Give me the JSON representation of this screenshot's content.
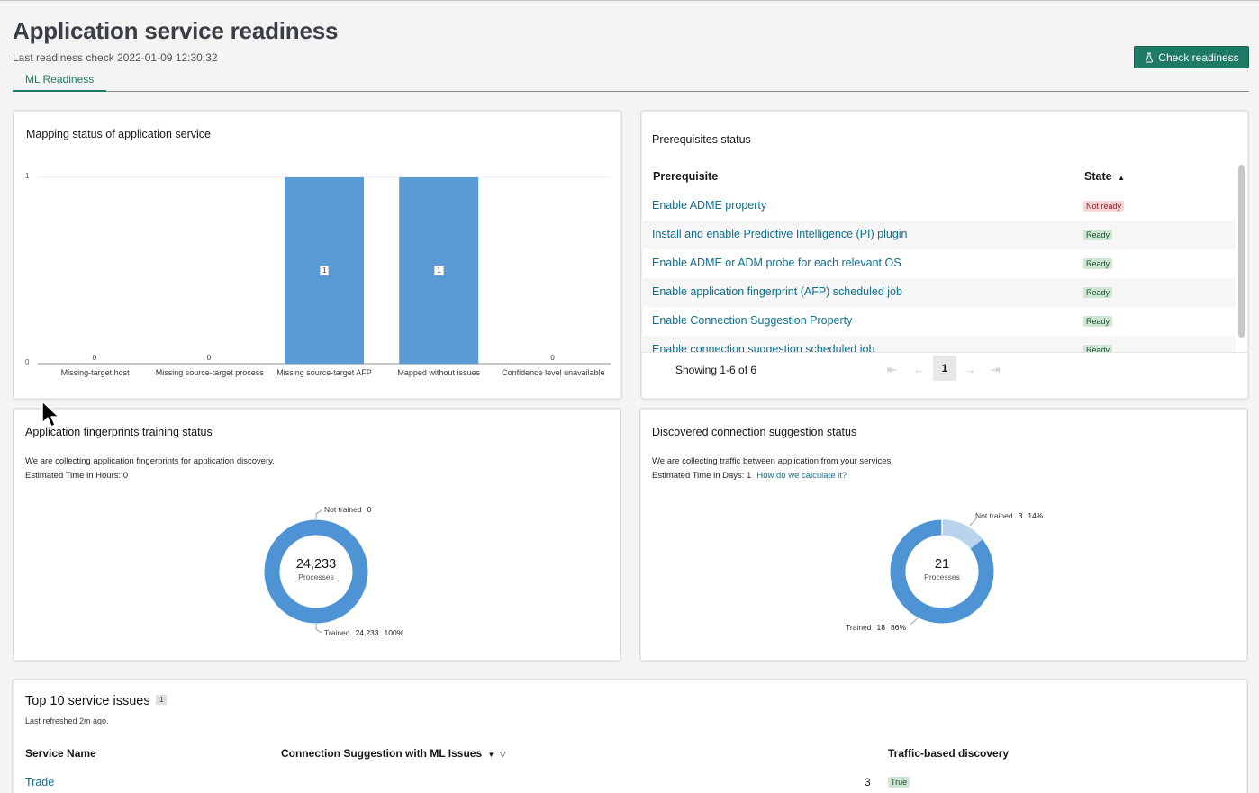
{
  "header": {
    "title": "Application service readiness",
    "last_check": "Last readiness check 2022-01-09 12:30:32",
    "check_button": "Check readiness",
    "check_icon": "bottle-icon",
    "tab": "ML Readiness"
  },
  "mapping": {
    "title": "Mapping status of application service",
    "chart_data": {
      "type": "bar",
      "categories": [
        "Missing-target host",
        "Missing source-target process",
        "Missing source-target AFP",
        "Mapped without issues",
        "Confidence level unavailable"
      ],
      "values": [
        0,
        0,
        1,
        1,
        0
      ],
      "ylim": [
        0,
        1
      ],
      "yticks": [
        "0",
        "1"
      ],
      "color": "#5a9bd5",
      "grid": true
    }
  },
  "prereq": {
    "title": "Prerequisites status",
    "col_prereq": "Prerequisite",
    "col_state": "State",
    "rows": [
      {
        "name": "Enable ADME property",
        "state": "Not ready"
      },
      {
        "name": "Install and enable Predictive Intelligence (PI) plugin",
        "state": "Ready"
      },
      {
        "name": "Enable ADME or ADM probe for each relevant OS",
        "state": "Ready"
      },
      {
        "name": "Enable application fingerprint (AFP) scheduled job",
        "state": "Ready"
      },
      {
        "name": "Enable Connection Suggestion Property",
        "state": "Ready"
      },
      {
        "name": "Enable connection suggestion scheduled job",
        "state": "Ready"
      }
    ],
    "showing": "Showing 1-6 of 6",
    "page": "1"
  },
  "afp": {
    "title": "Application fingerprints training status",
    "desc1": "We are collecting application fingerprints for application discovery.",
    "desc2": "Estimated Time in Hours: 0",
    "center_value": "24,233",
    "center_label": "Processes",
    "not_trained_label": "Not trained",
    "not_trained_value": "0",
    "trained_label": "Trained",
    "trained_value": "24,233",
    "trained_pct": "100%",
    "chart_data": {
      "type": "pie",
      "categories": [
        "Trained",
        "Not trained"
      ],
      "values": [
        24233,
        0
      ],
      "colors": [
        "#4e93d4",
        "#b9d5ee"
      ]
    }
  },
  "conn": {
    "title": "Discovered connection suggestion status",
    "desc1": "We are collecting traffic between application from your services.",
    "desc2": "Estimated Time in Days: 1",
    "link": "How do we calculate it?",
    "center_value": "21",
    "center_label": "Processes",
    "not_trained_label": "Not trained",
    "not_trained_value": "3",
    "not_trained_pct": "14%",
    "trained_label": "Trained",
    "trained_value": "18",
    "trained_pct": "86%",
    "chart_data": {
      "type": "pie",
      "categories": [
        "Trained",
        "Not trained"
      ],
      "values": [
        18,
        3
      ],
      "colors": [
        "#4e93d4",
        "#b9d5ee"
      ]
    }
  },
  "issues": {
    "title": "Top 10 service issues",
    "count": "1",
    "refreshed": "Last refreshed 2m ago.",
    "col_service": "Service Name",
    "col_conn": "Connection Suggestion with ML Issues",
    "col_traffic": "Traffic-based discovery",
    "rows": [
      {
        "service": "Trade",
        "issues": "3",
        "traffic": "True"
      }
    ]
  }
}
